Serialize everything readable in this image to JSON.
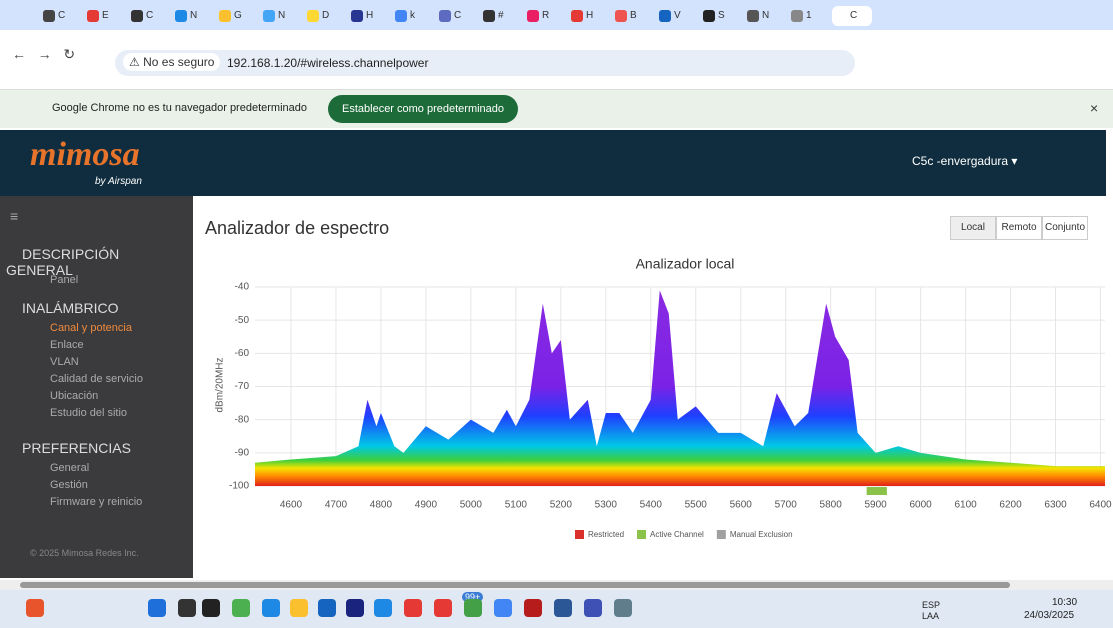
{
  "browser": {
    "tabs": [
      "C",
      "E",
      "C",
      "N",
      "G",
      "N",
      "D",
      "H",
      "k",
      "C",
      "#",
      "R",
      "H",
      "B",
      "V",
      "S",
      "N",
      "1",
      "C"
    ],
    "security": "No es seguro",
    "url": "192.168.1.20/#wireless.channelpower",
    "infobar_text": "Google Chrome no es tu navegador predeterminado",
    "infobar_button": "Establecer como predeterminado"
  },
  "header": {
    "logo": "mimosa",
    "logo_sub": "by Airspan",
    "device": "C5c -envergadura"
  },
  "sidebar": {
    "sections": [
      {
        "title": "DESCRIPCIÓN",
        "title2": "GENERAL",
        "items": [
          "Panel"
        ]
      },
      {
        "title": "INALÁMBRICO",
        "items": [
          "Canal y potencia",
          "Enlace",
          "VLAN",
          "Calidad de servicio",
          "Ubicación",
          "Estudio del sitio"
        ]
      },
      {
        "title": "PREFERENCIAS",
        "items": [
          "General",
          "Gestión",
          "Firmware y reinicio"
        ]
      }
    ],
    "footer": "© 2025 Mimosa Redes Inc."
  },
  "content": {
    "title": "Analizador de espectro",
    "buttons": [
      "Local",
      "Remoto",
      "Conjunto"
    ]
  },
  "chart_data": {
    "type": "area",
    "title": "Analizador local",
    "y_label": "dBm/20MHz",
    "x": [
      4520,
      4600,
      4700,
      4750,
      4770,
      4790,
      4800,
      4830,
      4850,
      4900,
      4950,
      5000,
      5050,
      5080,
      5100,
      5130,
      5160,
      5180,
      5200,
      5220,
      5260,
      5280,
      5300,
      5330,
      5360,
      5400,
      5420,
      5440,
      5460,
      5500,
      5550,
      5600,
      5650,
      5680,
      5720,
      5750,
      5790,
      5810,
      5840,
      5860,
      5900,
      5950,
      6000,
      6100,
      6200,
      6300,
      6410
    ],
    "values": [
      -93,
      -92,
      -91,
      -88,
      -74,
      -82,
      -78,
      -88,
      -90,
      -82,
      -86,
      -80,
      -84,
      -77,
      -82,
      -74,
      -45,
      -60,
      -56,
      -80,
      -74,
      -88,
      -78,
      -78,
      -84,
      -74,
      -41,
      -48,
      -80,
      -76,
      -84,
      -84,
      -88,
      -72,
      -82,
      -78,
      -45,
      -55,
      -62,
      -84,
      -90,
      -88,
      -90,
      -92,
      -93,
      -94,
      -94
    ],
    "active_channel": [
      5880,
      5925
    ],
    "xlim": [
      4520,
      6410
    ],
    "ylim": [
      -100,
      -40
    ],
    "xticks": [
      4600,
      4700,
      4800,
      4900,
      5000,
      5100,
      5200,
      5300,
      5400,
      5500,
      5600,
      5700,
      5800,
      5900,
      6000,
      6100,
      6200,
      6300,
      6400
    ],
    "yticks": [
      -100,
      -90,
      -80,
      -70,
      -60,
      -50,
      -40
    ],
    "grid": true,
    "legend": [
      {
        "name": "Restricted",
        "color": "#d9302c"
      },
      {
        "name": "Active Channel",
        "color": "#8bc34a"
      },
      {
        "name": "Manual Exclusion",
        "color": "#a0a0a0"
      }
    ]
  },
  "taskbar": {
    "badge": "99+",
    "lang": "ESP",
    "lang2": "LAA",
    "time": "10:30",
    "date": "24/03/2025"
  }
}
